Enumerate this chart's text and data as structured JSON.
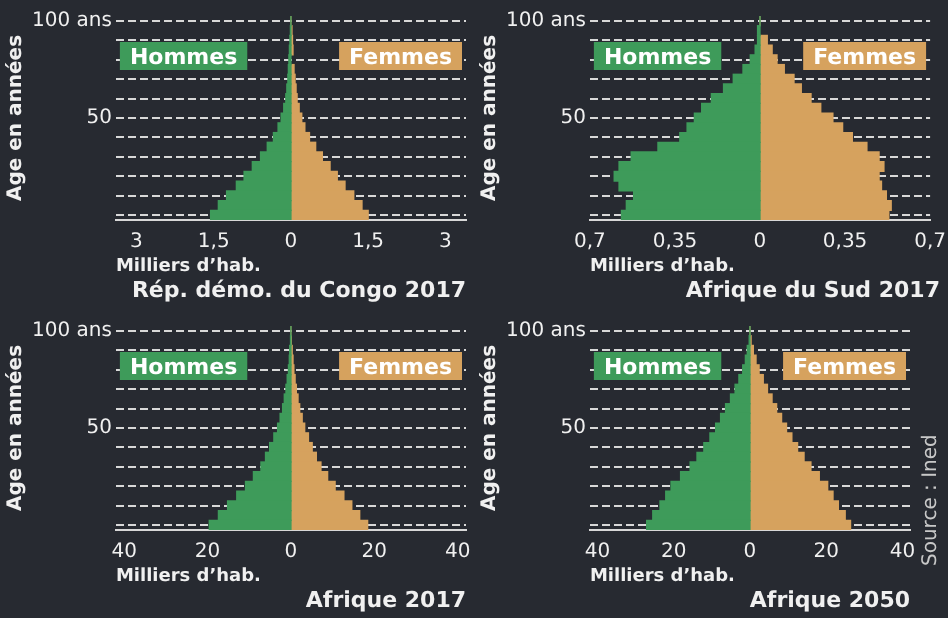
{
  "chart_data": [
    {
      "type": "bar",
      "orientation": "horizontal",
      "stacked": true,
      "title": "Rép. démo. du Congo 2017",
      "xlabel": "Milliers d’hab.",
      "ylabel": "Age en années",
      "categories": [
        "100 ans",
        null,
        null,
        null,
        null,
        null,
        null,
        null,
        null,
        null,
        "50",
        null,
        null,
        null,
        null,
        null,
        null,
        null,
        null,
        null,
        null
      ],
      "xlim": [
        -3.4,
        3.4
      ],
      "xticks": [
        {
          "value": -3,
          "label": "3"
        },
        {
          "value": -1.5,
          "label": "1,5"
        },
        0,
        {
          "value": 1.5,
          "label": "1,5"
        },
        3
      ],
      "grid": "y",
      "legend": "top",
      "series": [
        {
          "name": "Hommes",
          "color": "#3e9b5a",
          "values": [
            0,
            -0.01,
            -0.02,
            -0.03,
            -0.04,
            -0.05,
            -0.06,
            -0.08,
            -0.1,
            -0.14,
            -0.19,
            -0.25,
            -0.34,
            -0.46,
            -0.59,
            -0.75,
            -0.91,
            -1.06,
            -1.25,
            -1.41,
            -1.56
          ]
        },
        {
          "name": "Femmes",
          "color": "#d6a25e",
          "values": [
            0,
            0.02,
            0.03,
            0.04,
            null,
            0.06,
            0.08,
            0.1,
            0.12,
            0.16,
            0.21,
            0.27,
            0.36,
            0.48,
            0.61,
            0.76,
            0.9,
            1.05,
            1.22,
            1.38,
            1.5
          ]
        }
      ]
    },
    {
      "type": "bar",
      "orientation": "horizontal",
      "stacked": true,
      "title": "Afrique du Sud 2017",
      "xlabel": "Milliers d’hab.",
      "ylabel": "Age en années",
      "categories": [
        "100 ans",
        null,
        null,
        null,
        null,
        null,
        null,
        null,
        null,
        null,
        "50",
        null,
        null,
        null,
        null,
        null,
        null,
        null,
        null,
        null,
        null
      ],
      "xlim": [
        -0.7,
        0.7
      ],
      "xticks": [
        {
          "value": -0.7,
          "label": "0,7"
        },
        {
          "value": -0.35,
          "label": "0,35"
        },
        0,
        {
          "value": 0.35,
          "label": "0,35"
        },
        {
          "value": 0.7,
          "label": "0,7"
        }
      ],
      "grid": "y",
      "legend": "top",
      "series": [
        {
          "name": "Hommes",
          "color": "#3e9b5a",
          "values": [
            0,
            -0.01,
            -0.01,
            -0.02,
            -0.04,
            -0.07,
            -0.11,
            -0.15,
            -0.2,
            -0.24,
            -0.27,
            -0.3,
            -0.33,
            -0.42,
            -0.53,
            -0.58,
            -0.6,
            -0.58,
            -0.52,
            -0.55,
            -0.57
          ]
        },
        {
          "name": "Femmes",
          "color": "#d6a25e",
          "values": [
            0,
            null,
            0.03,
            0.05,
            0.07,
            0.1,
            0.14,
            0.17,
            0.21,
            0.25,
            0.3,
            0.34,
            0.38,
            0.44,
            0.49,
            0.51,
            0.49,
            0.5,
            0.52,
            0.54,
            0.53
          ]
        }
      ]
    },
    {
      "type": "bar",
      "orientation": "horizontal",
      "stacked": true,
      "title": "Afrique 2017",
      "xlabel": "Milliers d’hab.",
      "ylabel": "Age en années",
      "categories": [
        "100 ans",
        null,
        null,
        null,
        null,
        null,
        null,
        null,
        null,
        null,
        "50",
        null,
        null,
        null,
        null,
        null,
        null,
        null,
        null,
        null,
        null
      ],
      "xlim": [
        -42,
        42
      ],
      "xticks": [
        {
          "value": -40,
          "label": "40"
        },
        {
          "value": -20,
          "label": "20"
        },
        0,
        20,
        40
      ],
      "grid": "y",
      "legend": "top",
      "series": [
        {
          "name": "Hommes",
          "color": "#3e9b5a",
          "values": [
            0,
            -0.1,
            -0.3,
            -0.4,
            -0.6,
            -0.9,
            -1.2,
            -1.6,
            -2,
            -2.6,
            -3.2,
            -4.1,
            -5.1,
            -6.1,
            -7.2,
            -9,
            -10.9,
            -13,
            -15.2,
            -17.4,
            -19.6
          ]
        },
        {
          "name": "Femmes",
          "color": "#d6a25e",
          "values": [
            0,
            0.1,
            0.3,
            0.5,
            0.7,
            1,
            1.3,
            1.7,
            2.1,
            2.7,
            3.3,
            4.2,
            5.1,
            6.1,
            7.2,
            8.8,
            10.6,
            12.7,
            14.6,
            16.5,
            18.4
          ]
        }
      ]
    },
    {
      "type": "bar",
      "orientation": "horizontal",
      "stacked": true,
      "title": "Afrique 2050",
      "xlabel": "Milliers d’hab.",
      "ylabel": "Age en années",
      "categories": [
        "100 ans",
        null,
        null,
        null,
        null,
        null,
        null,
        null,
        null,
        null,
        "50",
        null,
        null,
        null,
        null,
        null,
        null,
        null,
        null,
        null,
        null
      ],
      "xlim": [
        -42,
        42
      ],
      "xticks": [
        {
          "value": -40,
          "label": "40"
        },
        {
          "value": -20,
          "label": "20"
        },
        0,
        20,
        40
      ],
      "grid": "y",
      "legend": "top",
      "annotations": [
        "Source : Ined"
      ],
      "series": [
        {
          "name": "Hommes",
          "color": "#3e9b5a",
          "values": [
            0,
            -0.2,
            -0.7,
            -1.2,
            -1.9,
            -2.9,
            -3.9,
            -5.1,
            -6.4,
            -7.7,
            -9,
            -10.5,
            -12.1,
            -13.9,
            -15.7,
            -18.2,
            -20.7,
            -22.1,
            -23.6,
            -25.5,
            -27.1
          ]
        },
        {
          "name": "Femmes",
          "color": "#d6a25e",
          "values": [
            0,
            0.3,
            0.9,
            1.6,
            2.4,
            3.5,
            4.6,
            5.8,
            7,
            8.3,
            9.6,
            11,
            12.5,
            14.2,
            16,
            18.2,
            20.4,
            21.8,
            23.2,
            25,
            26.4
          ]
        }
      ]
    }
  ]
}
